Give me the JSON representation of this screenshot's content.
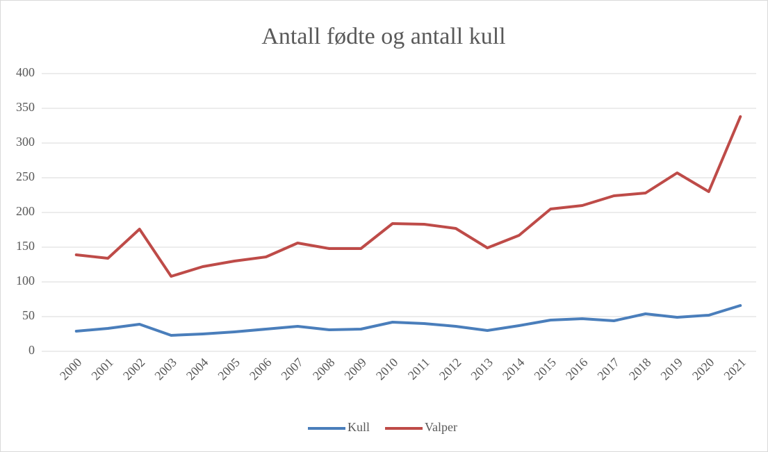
{
  "chart_data": {
    "type": "line",
    "title": "Antall fødte og antall kull",
    "categories": [
      "2000",
      "2001",
      "2002",
      "2003",
      "2004",
      "2005",
      "2006",
      "2007",
      "2008",
      "2009",
      "2010",
      "2011",
      "2012",
      "2013",
      "2014",
      "2015",
      "2016",
      "2017",
      "2018",
      "2019",
      "2020",
      "2021"
    ],
    "series": [
      {
        "name": "Kull",
        "color": "#4a7ebb",
        "values": [
          29,
          33,
          39,
          23,
          25,
          28,
          32,
          36,
          31,
          32,
          42,
          40,
          36,
          30,
          37,
          45,
          47,
          44,
          54,
          49,
          52,
          66
        ]
      },
      {
        "name": "Valper",
        "color": "#be4b48",
        "values": [
          139,
          134,
          176,
          108,
          122,
          130,
          136,
          156,
          148,
          148,
          184,
          183,
          177,
          149,
          167,
          205,
          210,
          224,
          228,
          257,
          230,
          338
        ]
      }
    ],
    "ylim": [
      0,
      400
    ],
    "yticks": [
      0,
      50,
      100,
      150,
      200,
      250,
      300,
      350,
      400
    ],
    "grid": true,
    "legend": "bottom"
  }
}
